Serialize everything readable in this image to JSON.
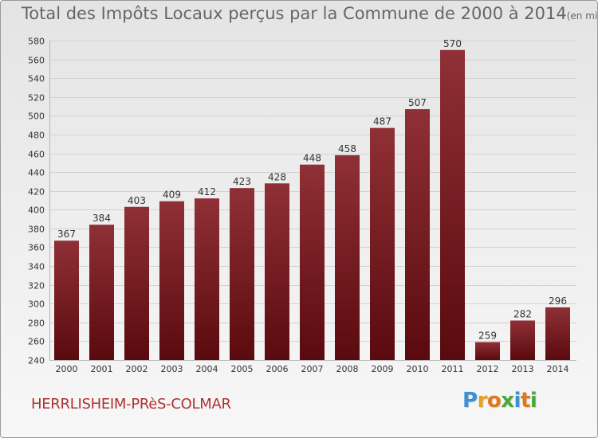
{
  "header": {
    "title": "Total des Impôts Locaux perçus par la Commune de 2000 à 2014",
    "unit": "(en milliers d'€)"
  },
  "footer": {
    "commune": "HERRLISHEIM-PRèS-COLMAR",
    "logo_letters": [
      "P",
      "r",
      "o",
      "x",
      "i",
      "t",
      "i"
    ],
    "logo_colors": [
      "#3a8fd6",
      "#e8a020",
      "#e07818",
      "#4aa83a",
      "#3a8fd6",
      "#e07818",
      "#4aa83a"
    ]
  },
  "colors": {
    "bar_top": "#8f3036",
    "bar_bottom": "#5a0a0e",
    "grid": "#d2d2d2",
    "axis_text": "#333333"
  },
  "chart_data": {
    "type": "bar",
    "title": "Total des Impôts Locaux perçus par la Commune de 2000 à 2014",
    "xlabel": "",
    "ylabel": "",
    "categories": [
      "2000",
      "2001",
      "2002",
      "2003",
      "2004",
      "2005",
      "2006",
      "2007",
      "2008",
      "2009",
      "2010",
      "2011",
      "2012",
      "2013",
      "2014"
    ],
    "values": [
      367,
      384,
      403,
      409,
      412,
      423,
      428,
      448,
      458,
      487,
      507,
      570,
      259,
      282,
      296
    ],
    "ylim": [
      240,
      580
    ],
    "yticks": [
      240,
      260,
      280,
      300,
      320,
      340,
      360,
      380,
      400,
      420,
      440,
      460,
      480,
      500,
      520,
      540,
      560,
      580
    ],
    "grid": true
  }
}
